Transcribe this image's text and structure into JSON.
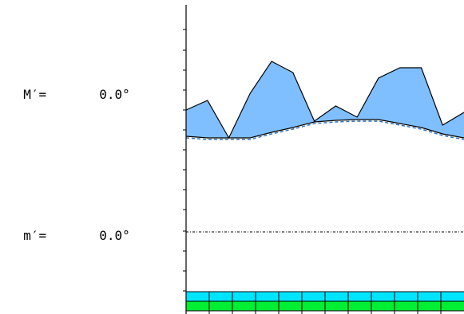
{
  "readouts": {
    "max": {
      "label": "M′=",
      "value": "0.0°"
    },
    "min": {
      "label": "m′=",
      "value": "0.0°"
    }
  },
  "colors": {
    "area_fill": "#7fbfff",
    "baseline_dash": "#2f6fbf",
    "band_top": "#00e5ff",
    "band_bottom": "#00ee33",
    "axis": "#000000"
  },
  "chart_data": {
    "type": "area",
    "series": [
      {
        "values": [
          138,
          126,
          173,
          117,
          77,
          91,
          152,
          133,
          147,
          98,
          85,
          85,
          157,
          141
        ]
      },
      {
        "values": [
          171,
          173,
          173,
          173,
          166,
          160,
          153,
          151,
          150,
          150,
          155,
          160,
          168,
          173
        ]
      }
    ],
    "ylim": [
      0,
      394
    ],
    "reference_line": 291,
    "y_ticks": [
      37,
      63,
      88,
      113,
      138,
      163,
      188,
      213,
      238,
      263,
      290,
      315,
      340,
      365
    ],
    "band_cells": 12,
    "grid": false
  }
}
